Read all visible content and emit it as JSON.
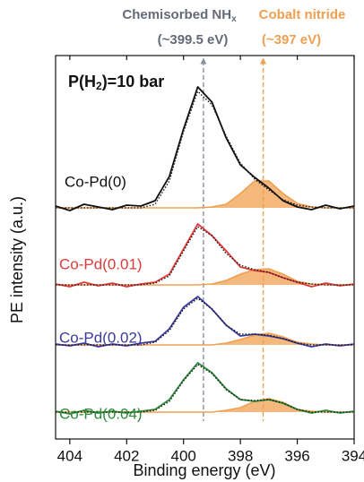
{
  "chart_data": {
    "type": "spectra",
    "annotations": [
      {
        "text": "Chemisorbed NH",
        "sub": "x",
        "note": "(~399.5 eV)",
        "color": "#666a78"
      },
      {
        "text": "Cobalt nitride",
        "note": "(~397 eV)",
        "color": "#f0a050"
      }
    ],
    "condition": {
      "pre": "P(H",
      "sub": "2",
      "post": ")=10 bar"
    },
    "x_label": "Binding energy (eV)",
    "y_label": "PE  intensity (a.u.)",
    "xlim": [
      404.5,
      394
    ],
    "xticks": [
      404,
      402,
      400,
      398,
      396,
      394
    ],
    "reference_lines": [
      {
        "value": 399.3,
        "color": "#8a8fa0"
      },
      {
        "value": 397.2,
        "color": "#f0a050"
      }
    ],
    "fit_color": "#111111",
    "nitride_color": "#f0a050",
    "x": [
      404.5,
      404,
      403.5,
      403,
      402.5,
      402,
      401.5,
      401,
      400.5,
      400,
      399.5,
      399,
      398.5,
      398,
      397.5,
      397,
      396.5,
      396,
      395.5,
      395,
      394.5,
      394
    ],
    "series": [
      {
        "name": "Co-Pd(0)",
        "color": "#111111",
        "values": [
          2,
          -3,
          4,
          1,
          -2,
          3,
          2,
          8,
          35,
          88,
          135,
          118,
          78,
          48,
          34,
          22,
          8,
          1,
          -2,
          3,
          -1,
          2
        ],
        "fit": [
          0,
          0,
          0,
          0,
          0,
          0,
          0,
          4,
          30,
          85,
          130,
          115,
          80,
          50,
          32,
          20,
          9,
          3,
          1,
          0,
          0,
          0
        ],
        "nitride": [
          0,
          0,
          0,
          0,
          0,
          0,
          0,
          0,
          0,
          0,
          0,
          1,
          4,
          16,
          30,
          30,
          16,
          5,
          1,
          0,
          0,
          0
        ]
      },
      {
        "name": "Co-Pd(0.01)",
        "color": "#e03a3a",
        "values": [
          1,
          -2,
          3,
          -1,
          2,
          -2,
          1,
          3,
          12,
          40,
          68,
          55,
          38,
          20,
          16,
          14,
          8,
          3,
          -2,
          2,
          -1,
          1
        ],
        "fit": [
          0,
          0,
          0,
          0,
          0,
          0,
          0,
          2,
          10,
          38,
          65,
          55,
          35,
          22,
          17,
          14,
          8,
          3,
          1,
          0,
          0,
          0
        ],
        "nitride": [
          0,
          0,
          0,
          0,
          0,
          0,
          0,
          0,
          0,
          0,
          0,
          1,
          5,
          12,
          17,
          18,
          12,
          4,
          1,
          0,
          0,
          0
        ]
      },
      {
        "name": "Co-Pd(0.02)",
        "color": "#3a3aa0",
        "values": [
          1,
          -1,
          2,
          -2,
          1,
          -1,
          2,
          4,
          18,
          42,
          54,
          40,
          22,
          10,
          12,
          10,
          7,
          2,
          -2,
          1,
          -1,
          1
        ],
        "fit": [
          0,
          0,
          0,
          0,
          0,
          0,
          0,
          3,
          16,
          40,
          52,
          40,
          22,
          12,
          12,
          11,
          7,
          2,
          0,
          0,
          0,
          0
        ],
        "nitride": [
          0,
          0,
          0,
          0,
          0,
          0,
          0,
          0,
          0,
          0,
          0,
          0,
          2,
          6,
          11,
          13,
          9,
          3,
          1,
          0,
          0,
          0
        ]
      },
      {
        "name": "Co-Pd(0.04)",
        "color": "#2e8b3a",
        "values": [
          1,
          -2,
          2,
          -1,
          1,
          -1,
          1,
          3,
          14,
          36,
          55,
          44,
          26,
          14,
          12,
          14,
          10,
          3,
          -1,
          2,
          -1,
          1
        ],
        "fit": [
          0,
          0,
          0,
          0,
          0,
          0,
          0,
          2,
          12,
          35,
          53,
          43,
          25,
          14,
          13,
          14,
          10,
          3,
          0,
          0,
          0,
          0
        ],
        "nitride": [
          0,
          0,
          0,
          0,
          0,
          0,
          0,
          0,
          0,
          0,
          0,
          0,
          2,
          5,
          12,
          15,
          11,
          3,
          1,
          0,
          0,
          0
        ]
      }
    ]
  }
}
